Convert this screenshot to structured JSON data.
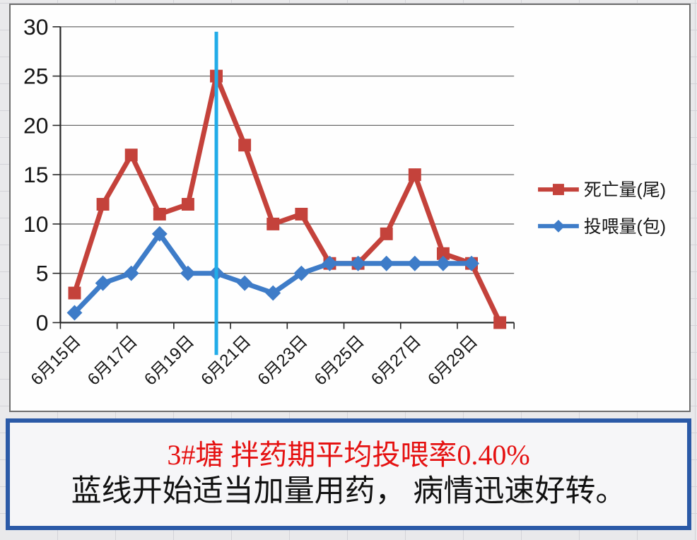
{
  "page": {
    "background": "#e9e9eb",
    "grid_line_color": "#d3d3d8"
  },
  "chart_box": {
    "background": "#fefefe",
    "border_color": "#6e6e6e"
  },
  "chart_data": {
    "type": "line",
    "title": "",
    "xlabel": "",
    "ylabel": "",
    "categories": [
      "6月15日",
      "6月16日",
      "6月17日",
      "6月18日",
      "6月19日",
      "6月20日",
      "6月21日",
      "6月22日",
      "6月23日",
      "6月24日",
      "6月25日",
      "6月26日",
      "6月27日",
      "6月28日",
      "6月29日",
      "6月30日"
    ],
    "x_tick_labels": [
      "6月15日",
      "6月17日",
      "6月19日",
      "6月21日",
      "6月23日",
      "6月25日",
      "6月27日",
      "6月29日"
    ],
    "series": [
      {
        "id": "deaths",
        "name": "死亡量(尾)",
        "color": "#c4423b",
        "marker": "square",
        "values": [
          3,
          12,
          17,
          11,
          12,
          25,
          18,
          10,
          11,
          6,
          6,
          9,
          15,
          7,
          6,
          0
        ]
      },
      {
        "id": "feed",
        "name": "投喂量(包)",
        "color": "#3e7cc8",
        "marker": "diamond",
        "values": [
          1,
          4,
          5,
          9,
          5,
          5,
          4,
          3,
          5,
          6,
          6,
          6,
          6,
          6,
          6,
          null
        ]
      }
    ],
    "ylim": [
      0,
      30
    ],
    "ytick_step": 5,
    "yticks": [
      0,
      5,
      10,
      15,
      20,
      25,
      30
    ],
    "grid": "on",
    "grid_color": "#6a6a6a",
    "axis_color": "#262626",
    "text_color": "#161616",
    "legend_position": "right",
    "annotation_line": {
      "x_index": 5,
      "x_category": "6月20日",
      "color": "#22ace8"
    }
  },
  "caption": {
    "line1": "3#塘 拌药期平均投喂率0.40%",
    "line1_color": "#e51111",
    "line2": "蓝线开始适当加量用药， 病情迅速好转。",
    "line2_color": "#111111",
    "border_color": "#2b5aa7",
    "background": "#f6f6f8"
  }
}
